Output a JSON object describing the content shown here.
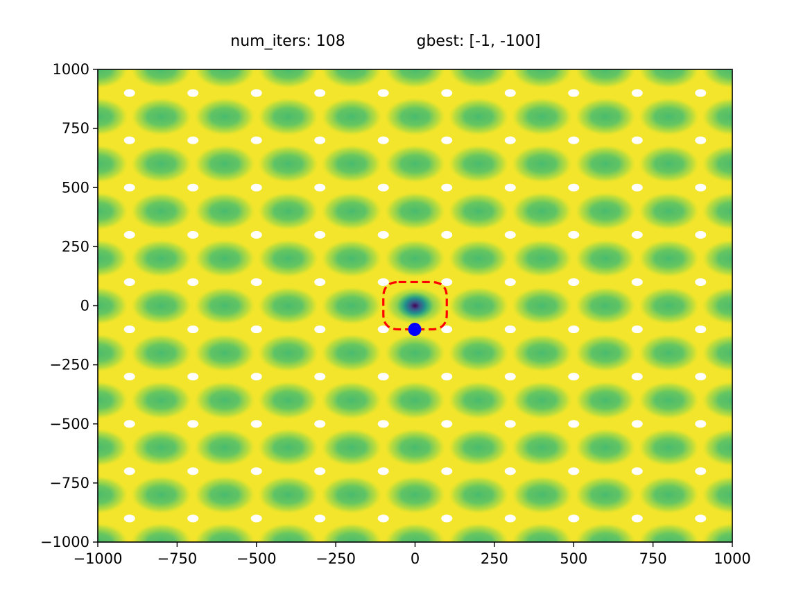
{
  "header": {
    "iter_label": "num_iters: 108",
    "gbest_label": "gbest: [-1, -100]"
  },
  "chart_data": {
    "type": "heatmap",
    "title": "num_iters: 108          gbest: [-1, -100]",
    "xlabel": "",
    "ylabel": "",
    "xlim": [
      -1000,
      1000
    ],
    "ylim": [
      -1000,
      1000
    ],
    "x_ticks": [
      -1000,
      -750,
      -500,
      -250,
      0,
      250,
      500,
      750,
      1000
    ],
    "y_ticks": [
      -1000,
      -750,
      -500,
      -250,
      0,
      250,
      500,
      750,
      1000
    ],
    "x_tick_labels": [
      "−1000",
      "−750",
      "−500",
      "−250",
      "0",
      "250",
      "500",
      "750",
      "1000"
    ],
    "y_tick_labels": [
      "−1000",
      "−750",
      "−500",
      "−250",
      "0",
      "250",
      "500",
      "750",
      "1000"
    ],
    "grid": false,
    "colormap": "viridis",
    "contour_field": {
      "global_minimum": [
        0,
        0
      ],
      "basin_period": [
        200,
        200
      ],
      "basin_offset": [
        0,
        0
      ],
      "peak_grid_x": [
        -900,
        -700,
        -500,
        -300,
        -100,
        100,
        300,
        500,
        700,
        900
      ],
      "peak_grid_y": [
        -900,
        -700,
        -500,
        -300,
        -100,
        100,
        300,
        500,
        700,
        900
      ]
    },
    "gbest_point": {
      "x": -1,
      "y": -100,
      "color": "#0000ff"
    },
    "search_region": {
      "x_range": [
        -100,
        100
      ],
      "y_range": [
        -100,
        100
      ],
      "color": "#ff0000",
      "style": "dashed"
    },
    "colors": {
      "low": "#440154",
      "mid": "#3fbc73",
      "high": "#fde725",
      "peak": "#ffffff"
    }
  }
}
